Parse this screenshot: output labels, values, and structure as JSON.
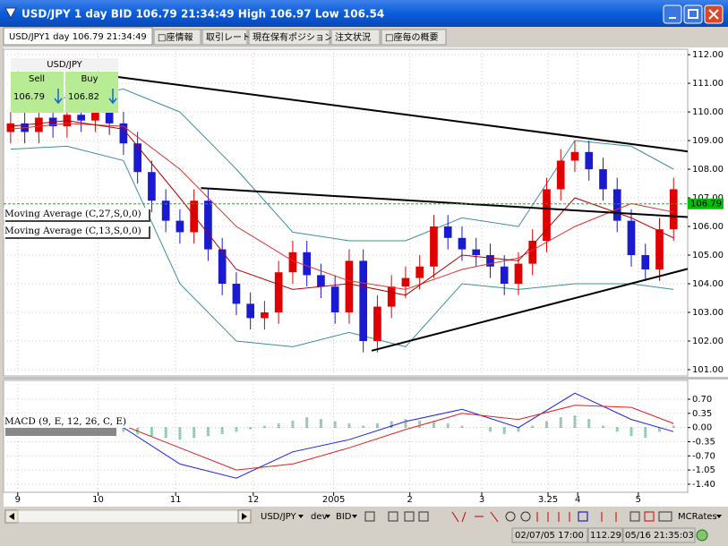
{
  "window": {
    "title": "USD/JPY 1 day BID 106.79 21:34:49 High 106.97 Low 106.54"
  },
  "tabs": [
    "USD/JPY1 day 106.79 21:34:49",
    "□座情報",
    "取引レート",
    "現在保有ポジション",
    "注文状況",
    "□座毎の概要"
  ],
  "quote": {
    "symbol": "USD/JPY",
    "sell_label": "Sell",
    "buy_label": "Buy",
    "sell": "106.79",
    "buy": "106.82"
  },
  "chart_data": [
    {
      "type": "candlestick",
      "xlim": [
        -0.5,
        48
      ],
      "ylim": [
        100.78,
        112.19
      ],
      "yticks": [
        {
          "value": 101,
          "label": "101.00"
        },
        {
          "value": 102,
          "label": "102.00"
        },
        {
          "value": 103,
          "label": "103.00"
        },
        {
          "value": 104,
          "label": "104.00"
        },
        {
          "value": 105,
          "label": "105.00"
        },
        {
          "value": 106,
          "label": "106.00"
        },
        {
          "value": 107,
          "label": "107.00"
        },
        {
          "value": 108,
          "label": "108.00"
        },
        {
          "value": 109,
          "label": "109.00"
        },
        {
          "value": 110,
          "label": "110.00"
        },
        {
          "value": 111,
          "label": "111.00"
        },
        {
          "value": 112,
          "label": "112.00"
        }
      ],
      "open": [
        109.3,
        109.6,
        109.3,
        109.8,
        109.5,
        109.9,
        109.7,
        110.1,
        109.6,
        108.9,
        107.9,
        106.9,
        106.2,
        105.8,
        106.9,
        105.2,
        104.0,
        103.3,
        102.8,
        103.0,
        104.4,
        105.1,
        104.3,
        103.9,
        103.0,
        104.8,
        102.0,
        103.2,
        103.9,
        104.2,
        104.6,
        106.0,
        105.6,
        105.2,
        105.0,
        104.6,
        104.0,
        104.7,
        105.5,
        107.3,
        108.3,
        108.6,
        108.0,
        107.3,
        106.2,
        105.0,
        104.5,
        105.9
      ],
      "high": [
        110.0,
        110.0,
        110.2,
        110.2,
        110.3,
        110.3,
        110.5,
        110.5,
        110.0,
        109.3,
        108.3,
        107.3,
        106.6,
        107.3,
        107.3,
        105.6,
        104.4,
        103.7,
        103.4,
        104.8,
        105.5,
        105.5,
        104.7,
        104.3,
        105.2,
        105.2,
        103.6,
        104.3,
        104.6,
        105.0,
        106.4,
        106.4,
        106.0,
        105.6,
        105.4,
        105.0,
        105.1,
        105.9,
        107.7,
        108.7,
        109.0,
        109.0,
        108.4,
        107.7,
        106.6,
        105.4,
        106.3,
        107.7
      ],
      "low": [
        108.9,
        108.9,
        108.9,
        109.1,
        109.1,
        109.3,
        109.3,
        109.2,
        108.5,
        107.5,
        106.5,
        105.8,
        105.4,
        105.4,
        104.8,
        103.6,
        102.9,
        102.4,
        102.4,
        102.6,
        104.0,
        103.9,
        103.5,
        102.6,
        102.6,
        101.6,
        101.6,
        102.8,
        103.5,
        103.8,
        104.2,
        105.2,
        104.8,
        104.6,
        104.2,
        103.6,
        103.6,
        104.3,
        105.1,
        106.9,
        107.9,
        107.6,
        106.9,
        105.8,
        104.6,
        104.1,
        104.1,
        105.5
      ],
      "close": [
        109.6,
        109.3,
        109.8,
        109.5,
        109.9,
        109.7,
        110.1,
        109.6,
        108.9,
        107.9,
        106.9,
        106.2,
        105.8,
        106.9,
        105.2,
        104.0,
        103.3,
        102.8,
        103.0,
        104.4,
        105.1,
        104.3,
        103.9,
        103.0,
        104.8,
        102.0,
        103.2,
        103.9,
        104.2,
        104.6,
        106.0,
        105.6,
        105.2,
        105.0,
        104.6,
        104.0,
        104.7,
        105.5,
        107.3,
        108.3,
        108.6,
        108.0,
        107.3,
        106.2,
        105.0,
        104.5,
        105.9,
        107.3
      ],
      "up_color": "#e00000",
      "down_color": "#1a1ad0",
      "series": [
        {
          "name": "Moving Average (C,27,S,0,0)",
          "color": "#e03030",
          "x": [
            0,
            4,
            8,
            12,
            16,
            20,
            24,
            28,
            32,
            36,
            40,
            44,
            47
          ],
          "values": [
            109.4,
            109.6,
            109.5,
            108.0,
            106.0,
            104.8,
            104.1,
            103.8,
            104.5,
            104.9,
            106.0,
            106.8,
            106.5
          ]
        },
        {
          "name": "Moving Average (C,13,S,0,0)",
          "color": "#b00000",
          "x": [
            0,
            4,
            8,
            12,
            16,
            20,
            24,
            28,
            32,
            36,
            40,
            44,
            47
          ],
          "values": [
            109.5,
            109.7,
            109.4,
            107.0,
            104.5,
            103.8,
            104.0,
            103.6,
            105.0,
            104.8,
            107.0,
            106.3,
            105.6
          ]
        }
      ],
      "bands": [
        {
          "color": "#3a8f9a",
          "x": [
            0,
            4,
            8,
            12,
            16,
            20,
            24,
            28,
            32,
            36,
            40,
            44,
            47
          ],
          "values": [
            110.5,
            110.5,
            110.8,
            110.0,
            108.0,
            105.8,
            105.5,
            105.5,
            106.3,
            106.0,
            109.0,
            108.8,
            108.0
          ]
        },
        {
          "color": "#3a8f9a",
          "x": [
            0,
            4,
            8,
            12,
            16,
            20,
            24,
            28,
            32,
            36,
            40,
            44,
            47
          ],
          "values": [
            108.7,
            108.8,
            108.3,
            104.0,
            102.0,
            101.8,
            102.3,
            101.8,
            104.0,
            103.8,
            104.0,
            104.0,
            103.8
          ]
        }
      ],
      "trendlines": [
        {
          "color": "#000000",
          "x": [
            7.6,
            48
          ],
          "values": [
            111.22,
            108.62
          ]
        },
        {
          "color": "#000000",
          "x": [
            13.5,
            48
          ],
          "values": [
            107.34,
            106.33
          ]
        },
        {
          "color": "#000000",
          "x": [
            25.6,
            48
          ],
          "values": [
            101.66,
            104.52
          ]
        }
      ],
      "last": {
        "value": 106.79,
        "label": "106.79"
      },
      "last_color": "#00c000"
    },
    {
      "type": "line",
      "title": "MACD (9, E, 12, 26, C, E)",
      "xlim": [
        -0.5,
        48
      ],
      "ylim": [
        -1.6,
        1.165
      ],
      "yticks": [
        {
          "value": 0.7,
          "label": "0.70"
        },
        {
          "value": 0.35,
          "label": "0.35"
        },
        {
          "value": 0,
          "label": "0.00"
        },
        {
          "value": -0.35,
          "label": "-0.35"
        },
        {
          "value": -0.7,
          "label": "-0.70"
        },
        {
          "value": -1.05,
          "label": "-1.05"
        },
        {
          "value": -1.4,
          "label": "-1.40"
        }
      ],
      "xticks": [
        {
          "value": 0.5,
          "label": "9"
        },
        {
          "value": 6.2,
          "label": "10"
        },
        {
          "value": 11.7,
          "label": "11"
        },
        {
          "value": 17.2,
          "label": "12"
        },
        {
          "value": 22.9,
          "label": "2005"
        },
        {
          "value": 28.3,
          "label": "2"
        },
        {
          "value": 33.4,
          "label": "3"
        },
        {
          "value": 38.1,
          "label": "3.25"
        },
        {
          "value": 40.2,
          "label": "4"
        },
        {
          "value": 44.5,
          "label": "5"
        }
      ],
      "series": [
        {
          "color": "#2020e0",
          "x": [
            0,
            4,
            8,
            12,
            16,
            20,
            24,
            28,
            32,
            36,
            40,
            44,
            47
          ],
          "values": [
            0.05,
            0.1,
            0.0,
            -0.9,
            -1.25,
            -0.6,
            -0.3,
            0.15,
            0.45,
            0.0,
            0.85,
            0.2,
            -0.1
          ]
        },
        {
          "color": "#e02020",
          "x": [
            0,
            4,
            8,
            12,
            16,
            20,
            24,
            28,
            32,
            36,
            40,
            44,
            47
          ],
          "values": [
            0.0,
            0.05,
            0.05,
            -0.5,
            -1.05,
            -0.9,
            -0.5,
            -0.05,
            0.35,
            0.2,
            0.55,
            0.5,
            0.1
          ]
        }
      ],
      "histogram": {
        "color": "#2a9a6a",
        "values": [
          0.03,
          0.04,
          0.03,
          0.05,
          0.04,
          0.03,
          0.02,
          -0.05,
          -0.1,
          -0.15,
          -0.2,
          -0.25,
          -0.3,
          -0.25,
          -0.2,
          -0.15,
          -0.1,
          -0.05,
          0.05,
          0.1,
          0.18,
          0.25,
          0.22,
          0.15,
          0.1,
          0.05,
          0.1,
          0.15,
          0.2,
          0.18,
          0.15,
          0.1,
          0.05,
          0.0,
          -0.1,
          -0.15,
          -0.1,
          0.05,
          0.15,
          0.25,
          0.3,
          0.2,
          0.05,
          -0.1,
          -0.2,
          -0.25,
          -0.1,
          0.05
        ]
      }
    }
  ],
  "toolbar": {
    "symbol": "USD/JPY",
    "feed": "dev",
    "side": "BID",
    "brand": "MCRates"
  },
  "status": [
    "02/07/05 17:00",
    "112.29",
    "05/16 21:35:03"
  ]
}
